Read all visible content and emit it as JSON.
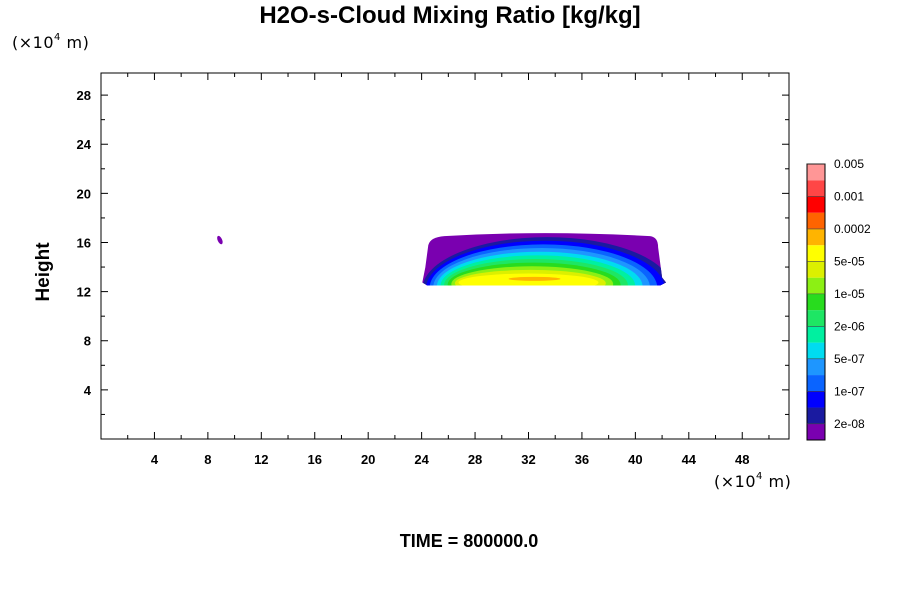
{
  "chart_data": {
    "type": "heatmap",
    "title": "H2O-s-Cloud Mixing Ratio [kg/kg]",
    "ylabel": "Height",
    "x_unit": {
      "prefix": "(×10",
      "exp": "4",
      "suffix": " m)"
    },
    "y_unit": {
      "prefix": "(×10",
      "exp": "4",
      "suffix": " m)"
    },
    "xlim": [
      0,
      51.5
    ],
    "ylim": [
      0,
      29.8
    ],
    "xticks": [
      4,
      8,
      12,
      16,
      20,
      24,
      28,
      32,
      36,
      40,
      44,
      48
    ],
    "yticks": [
      4,
      8,
      12,
      16,
      20,
      24,
      28
    ],
    "colorbar": {
      "colors": [
        "#7a00b0",
        "#1a1aa0",
        "#0000ff",
        "#0a64ff",
        "#1e96ff",
        "#00dcf0",
        "#00f0a0",
        "#1ee664",
        "#28dc1e",
        "#8cf014",
        "#dcf000",
        "#ffff00",
        "#ffb400",
        "#ff6400",
        "#ff0000",
        "#ff4646",
        "#ff9696"
      ],
      "labels": [
        "2e-08",
        "1e-07",
        "5e-07",
        "2e-06",
        "1e-05",
        "5e-05",
        "0.0002",
        "0.001",
        "0.005"
      ]
    },
    "features": [
      {
        "name": "cloud-band",
        "x_range": [
          24.2,
          42.0
        ],
        "y_range": [
          12.5,
          16.6
        ],
        "max_value": "0.0002",
        "core": [
          32.0,
          13.2
        ]
      },
      {
        "name": "small-cloud",
        "x": 8.9,
        "y": 16.2,
        "value": "2e-08"
      }
    ]
  },
  "time_label": "TIME = 800000.0"
}
